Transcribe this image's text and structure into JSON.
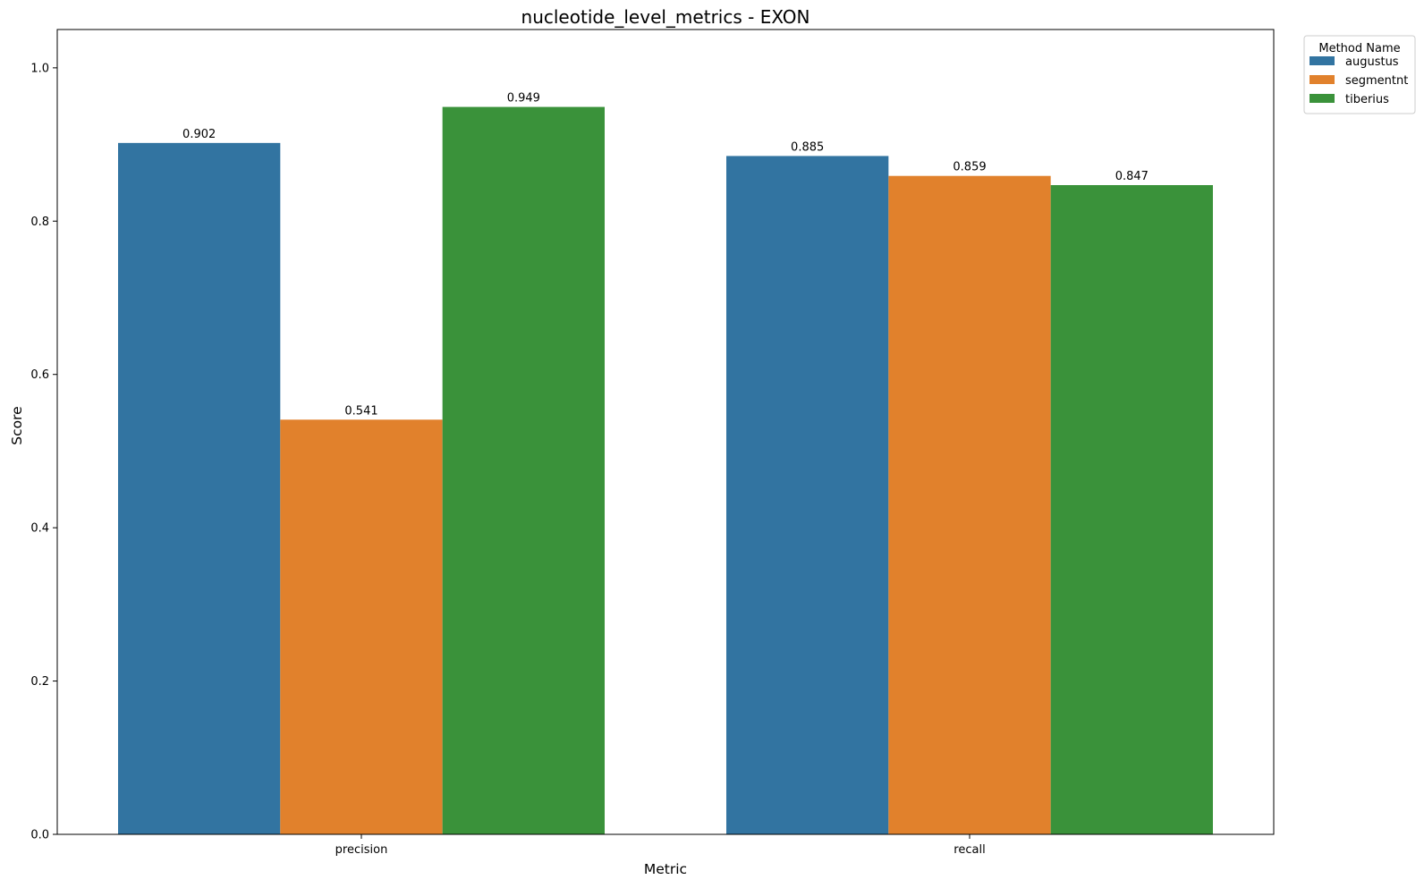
{
  "chart_data": {
    "type": "bar",
    "title": "nucleotide_level_metrics - EXON",
    "xlabel": "Metric",
    "ylabel": "Score",
    "categories": [
      "precision",
      "recall"
    ],
    "ylim": [
      0,
      1.05
    ],
    "yticks": [
      0.0,
      0.2,
      0.4,
      0.6,
      0.8,
      1.0
    ],
    "ytick_labels": [
      "0.0",
      "0.2",
      "0.4",
      "0.6",
      "0.8",
      "1.0"
    ],
    "grid": false,
    "legend": {
      "title": "Method Name",
      "placement": "outside-top-right"
    },
    "series": [
      {
        "name": "augustus",
        "color": "#3274a1",
        "values": [
          0.902,
          0.885
        ],
        "value_labels": [
          "0.902",
          "0.885"
        ]
      },
      {
        "name": "segmentnt",
        "color": "#e1812c",
        "values": [
          0.541,
          0.859
        ],
        "value_labels": [
          "0.541",
          "0.859"
        ]
      },
      {
        "name": "tiberius",
        "color": "#3a923a",
        "values": [
          0.949,
          0.847
        ],
        "value_labels": [
          "0.949",
          "0.847"
        ]
      }
    ]
  }
}
